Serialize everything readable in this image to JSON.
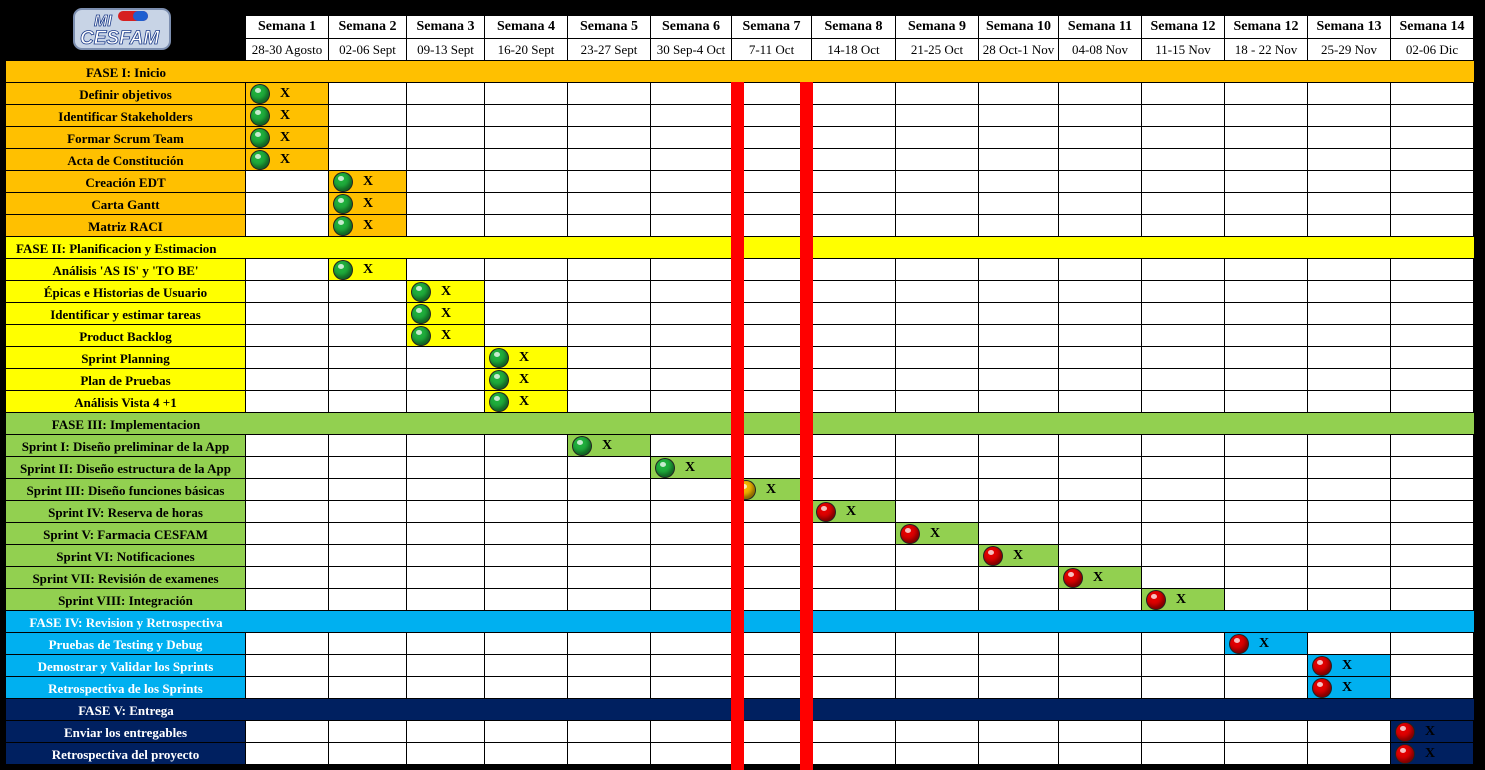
{
  "logo": {
    "line1": "MI",
    "line2": "CESFAM"
  },
  "weeks": [
    {
      "label": "Semana 1",
      "date": "28-30 Agosto"
    },
    {
      "label": "Semana 2",
      "date": "02-06 Sept"
    },
    {
      "label": "Semana 3",
      "date": "09-13 Sept"
    },
    {
      "label": "Semana 4",
      "date": "16-20 Sept"
    },
    {
      "label": "Semana 5",
      "date": "23-27 Sept"
    },
    {
      "label": "Semana 6",
      "date": "30 Sep-4 Oct"
    },
    {
      "label": "Semana 7",
      "date": "7-11 Oct"
    },
    {
      "label": "Semana 8",
      "date": "14-18 Oct"
    },
    {
      "label": "Semana 9",
      "date": "21-25 Oct"
    },
    {
      "label": "Semana 10",
      "date": "28 Oct-1 Nov"
    },
    {
      "label": "Semana 11",
      "date": "04-08 Nov"
    },
    {
      "label": "Semana 12",
      "date": "11-15 Nov"
    },
    {
      "label": "Semana 12",
      "date": "18 - 22 Nov"
    },
    {
      "label": "Semana 13",
      "date": "25-29 Nov"
    },
    {
      "label": "Semana 14",
      "date": "02-06 Dic"
    }
  ],
  "status_colors": {
    "done": "#1fae3c",
    "in_progress": "#f0b400",
    "pending": "#e00000"
  },
  "mark_text": "X",
  "phases": [
    {
      "title": "FASE I: Inicio",
      "color": "#ffc000",
      "text_color": "#000000",
      "tasks": [
        {
          "name": "Definir objetivos",
          "week": 1,
          "status": "done"
        },
        {
          "name": "Identificar Stakeholders",
          "week": 1,
          "status": "done"
        },
        {
          "name": "Formar Scrum Team",
          "week": 1,
          "status": "done"
        },
        {
          "name": "Acta de Constitución",
          "week": 1,
          "status": "done"
        },
        {
          "name": "Creación EDT",
          "week": 2,
          "status": "done"
        },
        {
          "name": "Carta Gantt",
          "week": 2,
          "status": "done"
        },
        {
          "name": "Matriz RACI",
          "week": 2,
          "status": "done"
        }
      ]
    },
    {
      "title": "FASE II: Planificacion y Estimacion",
      "color": "#ffff00",
      "text_color": "#000000",
      "tasks": [
        {
          "name": "Análisis 'AS IS' y 'TO BE'",
          "week": 2,
          "status": "done"
        },
        {
          "name": "Épicas e Historias de Usuario",
          "week": 3,
          "status": "done"
        },
        {
          "name": "Identificar y estimar tareas",
          "week": 3,
          "status": "done"
        },
        {
          "name": "Product Backlog",
          "week": 3,
          "status": "done"
        },
        {
          "name": "Sprint Planning",
          "week": 4,
          "status": "done"
        },
        {
          "name": "Plan de Pruebas",
          "week": 4,
          "status": "done"
        },
        {
          "name": "Análisis Vista 4 +1",
          "week": 4,
          "status": "done"
        }
      ]
    },
    {
      "title": "FASE III: Implementacion",
      "color": "#92d050",
      "text_color": "#000000",
      "tasks": [
        {
          "name": "Sprint I: Diseño preliminar de la App",
          "week": 5,
          "status": "done"
        },
        {
          "name": "Sprint II: Diseño estructura de la App",
          "week": 6,
          "status": "done"
        },
        {
          "name": "Sprint III: Diseño funciones básicas",
          "week": 7,
          "status": "in_progress"
        },
        {
          "name": "Sprint IV: Reserva de horas",
          "week": 8,
          "status": "pending"
        },
        {
          "name": "Sprint V: Farmacia CESFAM",
          "week": 9,
          "status": "pending"
        },
        {
          "name": "Sprint VI: Notificaciones",
          "week": 10,
          "status": "pending"
        },
        {
          "name": "Sprint VII: Revisión de examenes",
          "week": 11,
          "status": "pending"
        },
        {
          "name": "Sprint VIII: Integración",
          "week": 12,
          "status": "pending"
        }
      ]
    },
    {
      "title": "FASE IV: Revision y Retrospectiva",
      "color": "#00b0f0",
      "text_color": "#ffffff",
      "tasks": [
        {
          "name": "Pruebas de Testing y Debug",
          "week": 13,
          "status": "pending"
        },
        {
          "name": "Demostrar y Validar los Sprints",
          "week": 14,
          "status": "pending"
        },
        {
          "name": "Retrospectiva de los Sprints",
          "week": 14,
          "status": "pending"
        }
      ]
    },
    {
      "title": "FASE V: Entrega",
      "color": "#002060",
      "text_color": "#ffffff",
      "tasks": [
        {
          "name": "Enviar los entregables",
          "week": 15,
          "status": "pending"
        },
        {
          "name": "Retrospectiva del proyecto",
          "week": 15,
          "status": "pending"
        }
      ]
    }
  ],
  "current_week_marker": 7
}
